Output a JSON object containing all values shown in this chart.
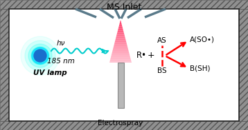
{
  "bg_color": "#ffffff",
  "hatch_color": "#777777",
  "ms_inlet_color": "#5a7a8a",
  "red_color": "#ff0000",
  "black": "#000000",
  "cyan_wave": "#00cccc",
  "title": "MS Inlet",
  "label_electrospray": "Electrospray",
  "label_uv": "UV lamp",
  "label_hv": "hν",
  "label_nm": "185 nm",
  "label_R": "R•",
  "label_plus": "+",
  "label_AS": "AS",
  "label_BS": "BS",
  "label_A": "A(SO•)",
  "label_B": "B(SH)",
  "fig_width": 3.58,
  "fig_height": 1.89,
  "dpi": 100
}
